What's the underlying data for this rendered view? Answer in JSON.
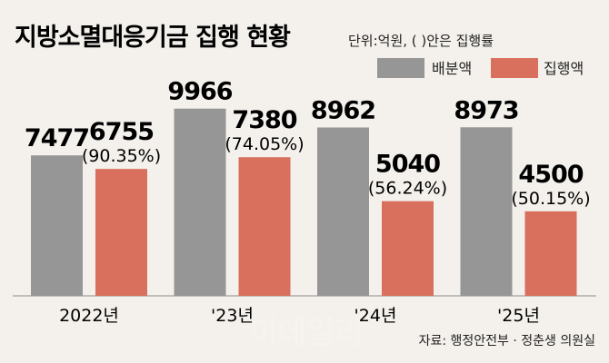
{
  "header": {
    "title": "지방소멸대응기금 집행 현황",
    "unit_note": "단위:억원, ( )안은 집행률"
  },
  "legend": [
    {
      "label": "배분액",
      "color": "#969696"
    },
    {
      "label": "집행액",
      "color": "#d9705e"
    }
  ],
  "chart_data": {
    "type": "bar",
    "title": "지방소멸대응기금 집행 현황",
    "unit": "단위:억원, ( )안은 집행률",
    "categories": [
      "2022년",
      "'23년",
      "'24년",
      "'25년"
    ],
    "series": [
      {
        "name": "배분액",
        "color": "#969696",
        "values": [
          7477,
          9966,
          8962,
          8973
        ]
      },
      {
        "name": "집행액",
        "color": "#d9705e",
        "values": [
          6755,
          7380,
          5040,
          4500
        ],
        "rates": [
          "(90.35%)",
          "(74.05%)",
          "(56.24%)",
          "(50.15%)"
        ]
      }
    ],
    "ylim": [
      0,
      10000
    ],
    "grid": false,
    "legend_position": "top-right"
  },
  "footer": {
    "source": "자료: 행정안전부 · 정춘생 의원실",
    "watermark": "이데일리"
  }
}
